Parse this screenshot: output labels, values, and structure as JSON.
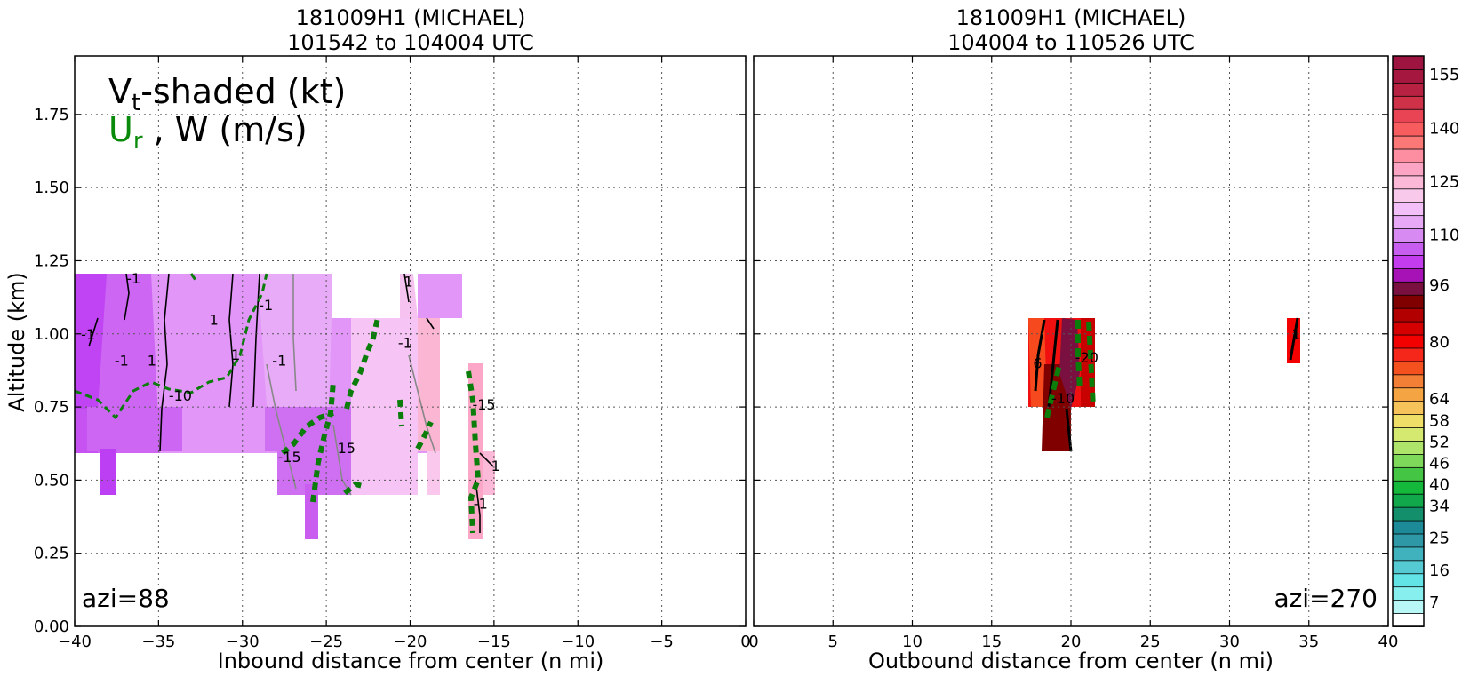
{
  "chart_data": [
    {
      "type": "contour",
      "title_line1": "181009H1 (MICHAEL)",
      "title_line2": "101542 to 104004 UTC",
      "xlabel": "Inbound distance from center (n mi)",
      "ylabel": "Altitude (km)",
      "xlim": [
        -40,
        0
      ],
      "ylim": [
        0,
        1.95
      ],
      "xticks": [
        "−40",
        "−35",
        "−30",
        "−25",
        "−20",
        "−15",
        "−10",
        "−5",
        "0"
      ],
      "xtick_values": [
        -40,
        -35,
        -30,
        -25,
        -20,
        -15,
        -10,
        -5,
        0
      ],
      "yticks": [
        "0.00",
        "0.25",
        "0.50",
        "0.75",
        "1.00",
        "1.25",
        "1.50",
        "1.75"
      ],
      "ytick_values": [
        0,
        0.25,
        0.5,
        0.75,
        1.0,
        1.25,
        1.5,
        1.75
      ],
      "grid": true,
      "legend_v": "V",
      "legend_v_sub": "t",
      "legend_v_rest": "-shaded (kt)",
      "legend_u": "U",
      "legend_u_sub": "r",
      "legend_u_rest": " , W (m/s)",
      "annotation": "azi=88",
      "contour_labels": [
        {
          "text": "-1",
          "x": -39.2,
          "y": 1.0
        },
        {
          "text": "-1",
          "x": -37.2,
          "y": 0.91
        },
        {
          "text": "1",
          "x": -35.4,
          "y": 0.91
        },
        {
          "text": "-1",
          "x": -36.5,
          "y": 1.19
        },
        {
          "text": "1",
          "x": -31.7,
          "y": 1.05
        },
        {
          "text": "1",
          "x": -30.4,
          "y": 0.93
        },
        {
          "text": "-1",
          "x": -28.6,
          "y": 1.1
        },
        {
          "text": "-1",
          "x": -27.8,
          "y": 0.91
        },
        {
          "text": "-10",
          "x": -33.7,
          "y": 0.79
        },
        {
          "text": "-15",
          "x": -27.2,
          "y": 0.58
        },
        {
          "text": "15",
          "x": -23.8,
          "y": 0.61
        },
        {
          "text": "1",
          "x": -20.1,
          "y": 1.18
        },
        {
          "text": "-1",
          "x": -20.3,
          "y": 0.97
        },
        {
          "text": "-15",
          "x": -15.6,
          "y": 0.76
        },
        {
          "text": "1",
          "x": -14.9,
          "y": 0.55
        },
        {
          "text": "-1",
          "x": -15.8,
          "y": 0.42
        }
      ]
    },
    {
      "type": "contour",
      "title_line1": "181009H1 (MICHAEL)",
      "title_line2": "104004 to 110526 UTC",
      "xlabel": "Outbound distance from center (n mi)",
      "xlim": [
        0,
        40
      ],
      "ylim": [
        0,
        1.95
      ],
      "xticks": [
        "0",
        "5",
        "10",
        "15",
        "20",
        "25",
        "30",
        "35",
        "40"
      ],
      "xtick_values": [
        0,
        5,
        10,
        15,
        20,
        25,
        30,
        35,
        40
      ],
      "grid": true,
      "annotation": "azi=270",
      "contour_labels": [
        {
          "text": "-10",
          "x": 19.5,
          "y": 0.78
        },
        {
          "text": "-20",
          "x": 21.0,
          "y": 0.92
        },
        {
          "text": "6",
          "x": 17.9,
          "y": 0.9
        },
        {
          "text": "1",
          "x": 34.2,
          "y": 1.0
        }
      ]
    },
    {
      "type": "colorbar",
      "tick_labels": [
        "7",
        "16",
        "25",
        "34",
        "40",
        "46",
        "52",
        "58",
        "64",
        "80",
        "96",
        "110",
        "125",
        "140",
        "155"
      ],
      "tick_values": [
        7,
        16,
        25,
        34,
        40,
        46,
        52,
        58,
        64,
        80,
        96,
        110,
        125,
        140,
        155
      ],
      "colors": [
        "#ffffff",
        "#b9f6f6",
        "#88efef",
        "#62e3e6",
        "#55cad2",
        "#3fb2bd",
        "#2e98a7",
        "#1c8b97",
        "#148f6b",
        "#11a84c",
        "#14b83a",
        "#44c543",
        "#7ed95b",
        "#aee46a",
        "#d5e970",
        "#efdf69",
        "#f6c25a",
        "#f5a444",
        "#f37e35",
        "#f5511f",
        "#f5271a",
        "#f30000",
        "#d50000",
        "#b20000",
        "#800000",
        "#7a1040",
        "#a612b6",
        "#c33cee",
        "#c85ef0",
        "#d88af3",
        "#e7a9f6",
        "#f2bff8",
        "#f9c9ec",
        "#fbb9d7",
        "#fca4c3",
        "#fd8da0",
        "#fc7877",
        "#f75d5f",
        "#e84453",
        "#cf3149",
        "#b82242",
        "#a5173f",
        "#9e1440"
      ]
    }
  ]
}
